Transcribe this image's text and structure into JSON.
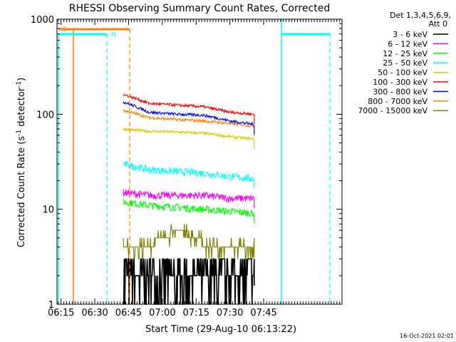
{
  "chart_data": {
    "type": "line",
    "title": "RHESSI Observing Summary Count Rates, Corrected",
    "xlabel": "Start Time (29-Aug-10 06:13:22)",
    "ylabel_main": "Corrected Count Rate (s",
    "ylabel_sup1": "-1",
    "ylabel_mid": " detector",
    "ylabel_sup2": "-1",
    "ylabel_end": ")",
    "yscale": "log",
    "ylim": [
      1,
      1000
    ],
    "xlim_minutes": [
      6.22,
      8.33
    ],
    "x_ticks": [
      {
        "label": "06:15",
        "value": 6.25
      },
      {
        "label": "06:30",
        "value": 6.5
      },
      {
        "label": "06:45",
        "value": 6.75
      },
      {
        "label": "07:00",
        "value": 7.0
      },
      {
        "label": "07:15",
        "value": 7.25
      },
      {
        "label": "07:30",
        "value": 7.5
      },
      {
        "label": "07:45",
        "value": 7.75
      }
    ],
    "y_ticks": [
      {
        "label": "1",
        "value": 1
      },
      {
        "label": "10",
        "value": 10
      },
      {
        "label": "100",
        "value": 100
      },
      {
        "label": "1000",
        "value": 1000
      }
    ],
    "legend_header": [
      "Det 1,3,4,5,6,9,",
      "Att 0"
    ],
    "series": [
      {
        "name": "3 - 6 keV",
        "color": "#000000",
        "t": [
          6.71,
          6.9,
          7.1,
          7.3,
          7.5,
          7.68
        ],
        "values": [
          2,
          2,
          2,
          2,
          2,
          2
        ]
      },
      {
        "name": "6 - 12 keV",
        "color": "#ff00ff",
        "t": [
          6.71,
          6.9,
          7.1,
          7.3,
          7.5,
          7.68
        ],
        "values": [
          15,
          14,
          14,
          14,
          13,
          13
        ]
      },
      {
        "name": "12 - 25 keV",
        "color": "#00ff00",
        "t": [
          6.71,
          6.9,
          7.1,
          7.3,
          7.5,
          7.68
        ],
        "values": [
          12,
          11,
          10.5,
          10,
          9.5,
          9
        ]
      },
      {
        "name": "25 - 50 keV",
        "color": "#00ffff",
        "t": [
          6.71,
          6.9,
          7.1,
          7.3,
          7.5,
          7.68
        ],
        "values": [
          30,
          26,
          25,
          24,
          22,
          21
        ]
      },
      {
        "name": "50 - 100 keV",
        "color": "#d7c800",
        "t": [
          6.71,
          6.9,
          7.1,
          7.3,
          7.5,
          7.68
        ],
        "values": [
          70,
          66,
          65,
          63,
          58,
          55
        ]
      },
      {
        "name": "100 - 300 keV",
        "color": "#ff0000",
        "t": [
          6.71,
          6.9,
          7.1,
          7.3,
          7.5,
          7.68
        ],
        "values": [
          162,
          130,
          125,
          120,
          105,
          100
        ]
      },
      {
        "name": "300 - 800 keV",
        "color": "#0000ff",
        "t": [
          6.71,
          6.9,
          7.1,
          7.3,
          7.5,
          7.68
        ],
        "values": [
          135,
          105,
          100,
          98,
          85,
          78
        ]
      },
      {
        "name": "800 - 7000 keV",
        "color": "#ff8000",
        "t": [
          6.71,
          6.9,
          7.1,
          7.3,
          7.5,
          7.68
        ],
        "values": [
          110,
          92,
          88,
          85,
          80,
          75
        ]
      },
      {
        "name": "7000 - 15000 keV",
        "color": "#808000",
        "t": [
          6.71,
          6.9,
          7.0,
          7.12,
          7.25,
          7.35,
          7.5,
          7.68
        ],
        "values": [
          4,
          4,
          5,
          6,
          5,
          4,
          4,
          4
        ]
      }
    ],
    "flags": [
      {
        "label": "S",
        "color": "#ff8000"
      },
      {
        "label": "N",
        "color": "#00ffff"
      }
    ],
    "footer_date": "16-Oct-2021 02:01"
  }
}
